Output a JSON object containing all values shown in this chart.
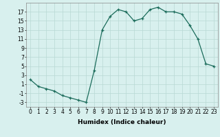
{
  "x": [
    0,
    1,
    2,
    3,
    4,
    5,
    6,
    7,
    8,
    9,
    10,
    11,
    12,
    13,
    14,
    15,
    16,
    17,
    18,
    19,
    20,
    21,
    22,
    23
  ],
  "y": [
    2,
    0.5,
    0,
    -0.5,
    -1.5,
    -2,
    -2.5,
    -3,
    4,
    13,
    16,
    17.5,
    17,
    15,
    15.5,
    17.5,
    18,
    17,
    17,
    16.5,
    14,
    11,
    5.5,
    5
  ],
  "line_color": "#1a6b5a",
  "marker": "+",
  "marker_size": 3,
  "background_color": "#d8f0ee",
  "grid_color": "#b8d8d4",
  "xlabel": "Humidex (Indice chaleur)",
  "xlim": [
    -0.5,
    23.5
  ],
  "ylim": [
    -4,
    19
  ],
  "yticks": [
    -3,
    -1,
    1,
    3,
    5,
    7,
    9,
    11,
    13,
    15,
    17
  ],
  "xticks": [
    0,
    1,
    2,
    3,
    4,
    5,
    6,
    7,
    8,
    9,
    10,
    11,
    12,
    13,
    14,
    15,
    16,
    17,
    18,
    19,
    20,
    21,
    22,
    23
  ],
  "label_fontsize": 6.5,
  "tick_fontsize": 5.5
}
